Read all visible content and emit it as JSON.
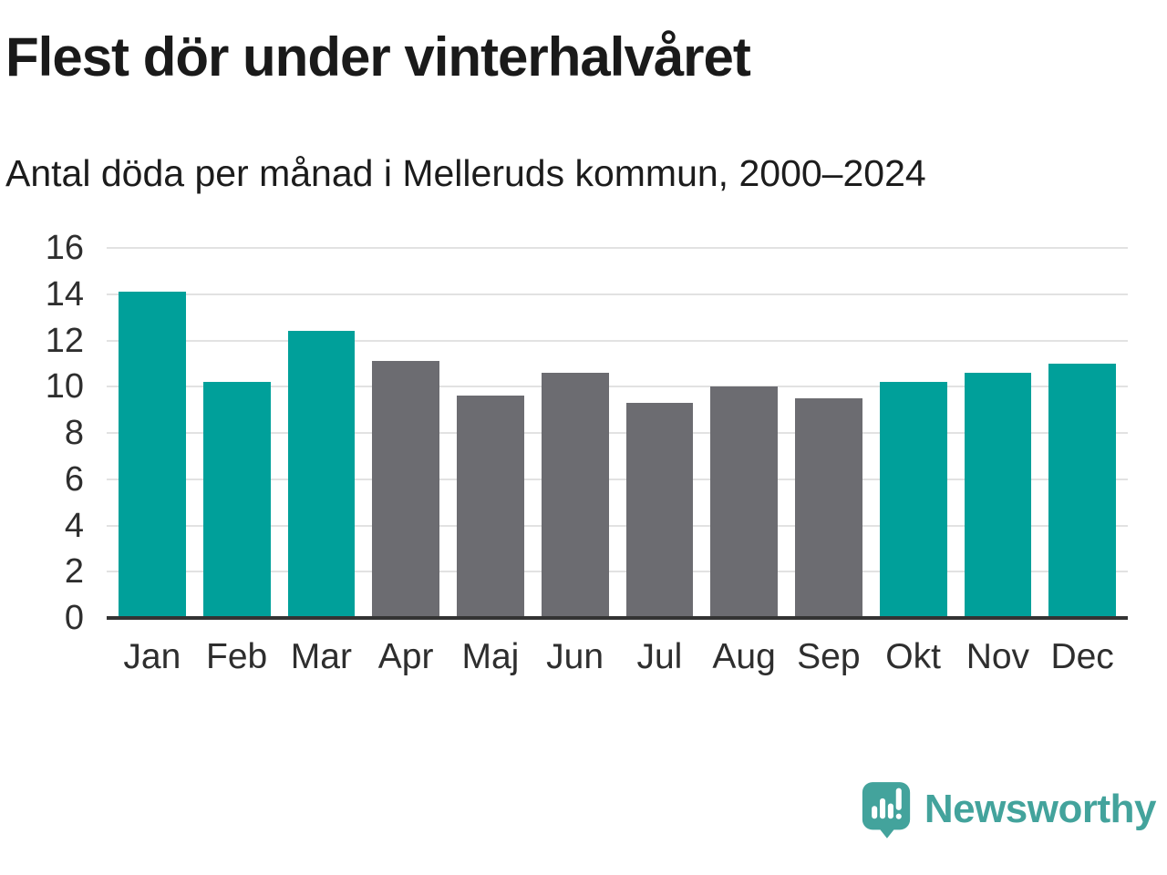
{
  "header": {
    "title": "Flest dör under vinterhalvåret",
    "subtitle": "Antal döda per månad i Melleruds kommun, 2000–2024"
  },
  "chart_data": {
    "type": "bar",
    "title": "Flest dör under vinterhalvåret",
    "subtitle": "Antal döda per månad i Melleruds kommun, 2000–2024",
    "categories": [
      "Jan",
      "Feb",
      "Mar",
      "Apr",
      "Maj",
      "Jun",
      "Jul",
      "Aug",
      "Sep",
      "Okt",
      "Nov",
      "Dec"
    ],
    "values": [
      14.1,
      10.2,
      12.4,
      11.1,
      9.6,
      10.6,
      9.3,
      10.0,
      9.5,
      10.2,
      10.6,
      11.0
    ],
    "bar_colors": [
      "#00a09a",
      "#00a09a",
      "#00a09a",
      "#6c6c71",
      "#6c6c71",
      "#6c6c71",
      "#6c6c71",
      "#6c6c71",
      "#6c6c71",
      "#00a09a",
      "#00a09a",
      "#00a09a"
    ],
    "winter_color": "#00a09a",
    "summer_color": "#6c6c71",
    "xlabel": "",
    "ylabel": "",
    "ylim": [
      0,
      16
    ],
    "yticks": [
      0,
      2,
      4,
      6,
      8,
      10,
      12,
      14,
      16
    ],
    "grid": "horizontal",
    "gridline_color": "#e2e2e2",
    "axis_color": "#333333",
    "legend": "none"
  },
  "branding": {
    "name": "Newsworthy",
    "logo_icon": "speech-bubble-bar-chart-icon",
    "color": "#43a39c"
  }
}
